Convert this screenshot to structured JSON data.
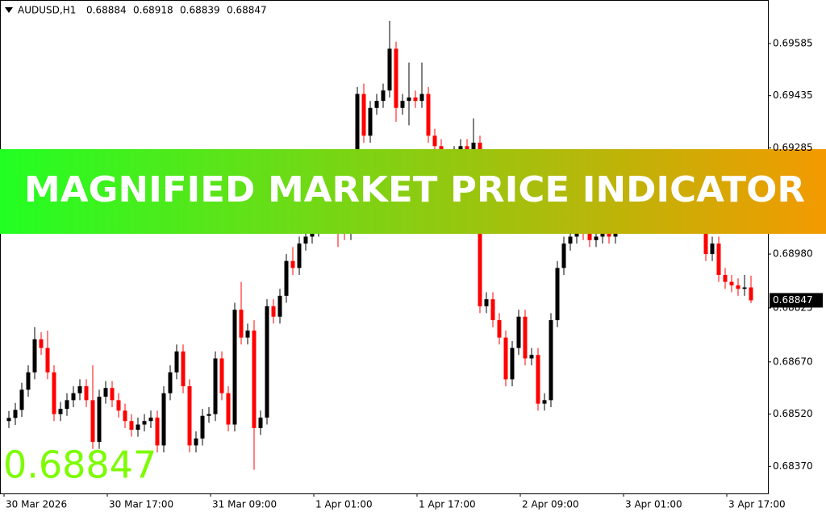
{
  "chart_data": {
    "type": "candlestick",
    "symbol": "AUDUSD,H1",
    "header_ohlc": [
      0.68884,
      0.68918,
      0.68839,
      0.68847
    ],
    "current_price": 0.68847,
    "up_color": "#000000",
    "down_color": "#ff0000",
    "price_label_color": "#000000",
    "big_price_color": "#7cfc00",
    "ylim": [
      0.68292,
      0.6971
    ],
    "yticks": [
      {
        "value": 0.6837,
        "label": "0.68370"
      },
      {
        "value": 0.6852,
        "label": "0.68520"
      },
      {
        "value": 0.6867,
        "label": "0.68670"
      },
      0.68825,
      {
        "value": 0.6898,
        "label": "0.68980"
      },
      0.69285,
      0.69435,
      0.69585
    ],
    "categories": [
      "30 Mar 2026",
      null,
      null,
      null,
      null,
      null,
      null,
      null,
      null,
      null,
      null,
      null,
      null,
      null,
      null,
      null,
      "30 Mar 17:00",
      null,
      null,
      null,
      null,
      null,
      null,
      null,
      null,
      null,
      null,
      null,
      null,
      null,
      null,
      null,
      "31 Mar 09:00",
      null,
      null,
      null,
      null,
      null,
      null,
      null,
      null,
      null,
      null,
      null,
      null,
      null,
      null,
      null,
      "1 Apr 01:00",
      null,
      null,
      null,
      null,
      null,
      null,
      null,
      null,
      null,
      null,
      null,
      null,
      null,
      null,
      null,
      "1 Apr 17:00",
      null,
      null,
      null,
      null,
      null,
      null,
      null,
      null,
      null,
      null,
      null,
      null,
      null,
      null,
      null,
      "2 Apr 09:00",
      null,
      null,
      null,
      null,
      null,
      null,
      null,
      null,
      null,
      null,
      null,
      null,
      null,
      null,
      null,
      "3 Apr 01:00",
      null,
      null,
      null,
      null,
      null,
      null,
      null,
      null,
      null,
      null,
      null,
      null,
      null,
      null,
      null,
      "3 Apr 17:00",
      null,
      null,
      null
    ],
    "open": [
      0.685,
      0.68509,
      0.68532,
      0.6859,
      0.6864,
      0.68735,
      0.6871,
      0.6864,
      0.6852,
      0.68535,
      0.6856,
      0.6858,
      0.686,
      0.6856,
      0.6844,
      0.6857,
      0.68595,
      0.6856,
      0.6853,
      0.685,
      0.68475,
      0.6849,
      0.685,
      0.6851,
      0.6843,
      0.6858,
      0.6864,
      0.687,
      0.686,
      0.6843,
      0.6845,
      0.68515,
      0.6852,
      0.6868,
      0.6858,
      0.6849,
      0.6882,
      0.6874,
      0.6876,
      0.6848,
      0.6851,
      0.6883,
      0.688,
      0.6886,
      0.6896,
      0.6894,
      0.6901,
      0.6903,
      0.6905,
      0.6908,
      0.6915,
      0.692,
      0.6906,
      0.6904,
      0.6915,
      0.6944,
      0.6932,
      0.694,
      0.6942,
      0.6945,
      0.6957,
      0.694,
      0.6942,
      0.6943,
      0.6942,
      0.6944,
      0.6932,
      0.6929,
      0.6925,
      0.6924,
      0.6927,
      0.6929,
      0.6927,
      0.693,
      0.6883,
      0.6885,
      0.6879,
      0.6874,
      0.6862,
      0.6871,
      0.688,
      0.6868,
      0.6869,
      0.6855,
      0.6856,
      0.6879,
      0.6894,
      0.6901,
      0.6903,
      0.6905,
      0.6904,
      0.6902,
      0.6903,
      0.6904,
      0.6903,
      0.691,
      0.6915,
      0.6912,
      0.6918,
      0.6916,
      0.692,
      0.6918,
      0.6915,
      0.6913,
      0.6916,
      0.6914,
      0.6912,
      0.691,
      0.6908,
      0.6898,
      0.6901,
      0.6892,
      0.689,
      0.6889,
      0.6888,
      0.68884
    ],
    "high": [
      0.68529,
      0.68552,
      0.6861,
      0.6866,
      0.6877,
      0.68755,
      0.6876,
      0.6866,
      0.68555,
      0.6858,
      0.686,
      0.6862,
      0.6862,
      0.6866,
      0.6859,
      0.68615,
      0.68615,
      0.6858,
      0.6855,
      0.6852,
      0.6851,
      0.6852,
      0.6853,
      0.6853,
      0.686,
      0.6866,
      0.6872,
      0.6872,
      0.6862,
      0.6847,
      0.68535,
      0.6854,
      0.687,
      0.687,
      0.686,
      0.6884,
      0.689,
      0.6878,
      0.6879,
      0.6853,
      0.6885,
      0.6885,
      0.6888,
      0.6898,
      0.69,
      0.6903,
      0.6905,
      0.6907,
      0.691,
      0.6917,
      0.6922,
      0.6922,
      0.6908,
      0.6917,
      0.6946,
      0.6947,
      0.6942,
      0.6944,
      0.6947,
      0.6965,
      0.6959,
      0.6944,
      0.6953,
      0.6945,
      0.6953,
      0.6946,
      0.6934,
      0.6931,
      0.6927,
      0.6929,
      0.6931,
      0.6931,
      0.6937,
      0.6932,
      0.6887,
      0.6887,
      0.6881,
      0.6876,
      0.6873,
      0.6882,
      0.6882,
      0.6871,
      0.6871,
      0.6858,
      0.6881,
      0.6896,
      0.6903,
      0.6905,
      0.6907,
      0.6907,
      0.6906,
      0.6905,
      0.6906,
      0.6906,
      0.6912,
      0.6917,
      0.6917,
      0.692,
      0.692,
      0.6922,
      0.6922,
      0.692,
      0.6917,
      0.6918,
      0.6918,
      0.6916,
      0.6914,
      0.6912,
      0.691,
      0.6903,
      0.6903,
      0.6894,
      0.6892,
      0.6891,
      0.6892,
      0.68918
    ],
    "low": [
      0.6848,
      0.68489,
      0.68512,
      0.6857,
      0.6862,
      0.6869,
      0.6862,
      0.685,
      0.685,
      0.68515,
      0.6854,
      0.6856,
      0.6854,
      0.6842,
      0.6842,
      0.6855,
      0.6854,
      0.6851,
      0.6848,
      0.68455,
      0.68455,
      0.6847,
      0.6848,
      0.6841,
      0.6841,
      0.6856,
      0.6862,
      0.6858,
      0.6841,
      0.6841,
      0.6843,
      0.68495,
      0.685,
      0.6856,
      0.6847,
      0.6847,
      0.6872,
      0.6872,
      0.6836,
      0.6846,
      0.6849,
      0.6878,
      0.6878,
      0.6884,
      0.6892,
      0.6892,
      0.6899,
      0.6901,
      0.6903,
      0.6906,
      0.6913,
      0.69,
      0.6902,
      0.6902,
      0.6913,
      0.693,
      0.693,
      0.6938,
      0.694,
      0.6943,
      0.6936,
      0.6938,
      0.6935,
      0.694,
      0.694,
      0.693,
      0.6927,
      0.6923,
      0.6922,
      0.6922,
      0.6925,
      0.6925,
      0.6925,
      0.6881,
      0.6881,
      0.6877,
      0.6872,
      0.686,
      0.686,
      0.6869,
      0.6866,
      0.6866,
      0.6853,
      0.6853,
      0.6854,
      0.6877,
      0.6892,
      0.6899,
      0.6901,
      0.6902,
      0.69,
      0.69,
      0.6901,
      0.6901,
      0.6901,
      0.6908,
      0.691,
      0.691,
      0.6914,
      0.6914,
      0.6916,
      0.6913,
      0.6911,
      0.6911,
      0.6912,
      0.691,
      0.6908,
      0.6906,
      0.6896,
      0.6896,
      0.689,
      0.6888,
      0.6887,
      0.6886,
      0.6886,
      0.68839
    ],
    "close": [
      0.68509,
      0.68532,
      0.6859,
      0.6864,
      0.68735,
      0.6871,
      0.6864,
      0.6852,
      0.68535,
      0.6856,
      0.6858,
      0.686,
      0.6856,
      0.6844,
      0.6857,
      0.68595,
      0.6856,
      0.6853,
      0.685,
      0.68475,
      0.6849,
      0.685,
      0.6851,
      0.6843,
      0.6858,
      0.6864,
      0.687,
      0.686,
      0.6843,
      0.6845,
      0.68515,
      0.6852,
      0.6868,
      0.6858,
      0.6849,
      0.6882,
      0.6874,
      0.6876,
      0.6848,
      0.6851,
      0.6883,
      0.688,
      0.6886,
      0.6896,
      0.6894,
      0.6901,
      0.6903,
      0.6905,
      0.6908,
      0.6915,
      0.692,
      0.6906,
      0.6904,
      0.6915,
      0.6944,
      0.6932,
      0.694,
      0.6942,
      0.6945,
      0.6957,
      0.694,
      0.6942,
      0.6943,
      0.6942,
      0.6944,
      0.6932,
      0.6929,
      0.6925,
      0.6924,
      0.6927,
      0.6929,
      0.6927,
      0.693,
      0.6883,
      0.6885,
      0.6879,
      0.6874,
      0.6862,
      0.6871,
      0.688,
      0.6868,
      0.6869,
      0.6855,
      0.6856,
      0.6879,
      0.6894,
      0.6901,
      0.6903,
      0.6905,
      0.6904,
      0.6902,
      0.6903,
      0.6904,
      0.6903,
      0.691,
      0.6915,
      0.6912,
      0.6918,
      0.6916,
      0.692,
      0.6918,
      0.6915,
      0.6913,
      0.6916,
      0.6914,
      0.6912,
      0.691,
      0.6908,
      0.6898,
      0.6901,
      0.6892,
      0.689,
      0.6889,
      0.6888,
      0.68884,
      0.68847
    ]
  },
  "banner": {
    "text": "MAGNIFIED MARKET PRICE INDICATOR",
    "color_start": "#22ff22",
    "color_end": "#f39a00"
  }
}
